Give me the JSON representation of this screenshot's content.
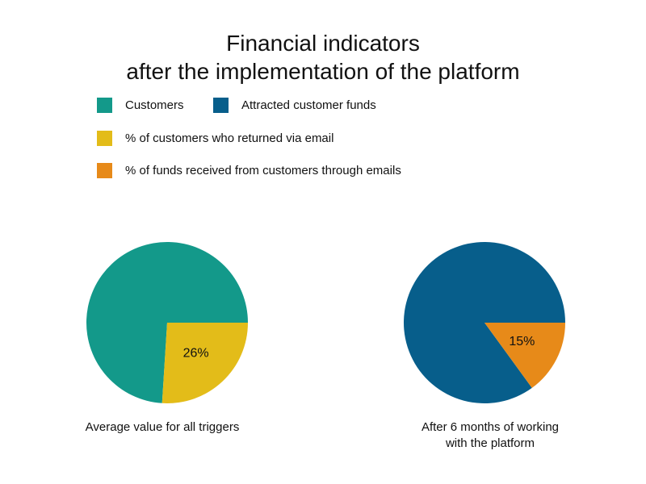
{
  "title": {
    "line1": "Financial indicators",
    "line2": "after the implementation of the platform"
  },
  "legend": [
    {
      "label": "Customers",
      "color": "#13998a"
    },
    {
      "label": "Attracted customer funds",
      "color": "#075e8b"
    },
    {
      "label": "% of customers who returned via email",
      "color": "#e3bc19"
    },
    {
      "label": "% of funds received from customers through emails",
      "color": "#e78a19"
    }
  ],
  "chart_data": [
    {
      "type": "pie",
      "caption": "Average value for all triggers",
      "slices": [
        {
          "name": "Customers",
          "value": 74,
          "color": "#13998a"
        },
        {
          "name": "% of customers who returned via email",
          "value": 26,
          "label": "26%",
          "color": "#e3bc19"
        }
      ]
    },
    {
      "type": "pie",
      "caption_line1": "After 6 months of working",
      "caption_line2": "with the platform",
      "slices": [
        {
          "name": "Attracted customer funds",
          "value": 85,
          "color": "#075e8b"
        },
        {
          "name": "% of funds received from customers through emails",
          "value": 15,
          "label": "15%",
          "color": "#e78a19"
        }
      ]
    }
  ]
}
